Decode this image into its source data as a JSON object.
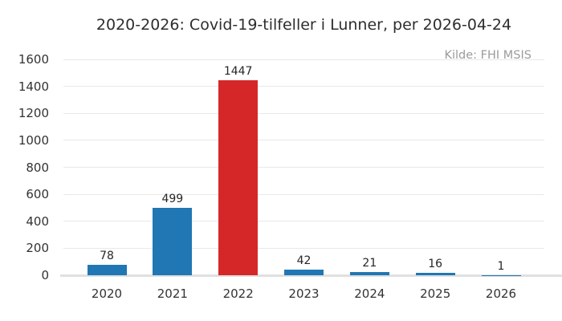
{
  "chart_data": {
    "type": "bar",
    "title": "2020-2026: Covid-19-tilfeller i Lunner, per 2026-04-24",
    "source": "Kilde: FHI MSIS",
    "categories": [
      "2020",
      "2021",
      "2022",
      "2023",
      "2024",
      "2025",
      "2026"
    ],
    "values": [
      78,
      499,
      1447,
      42,
      21,
      16,
      1
    ],
    "value_labels": [
      "78",
      "499",
      "1447",
      "42",
      "21",
      "16",
      "1"
    ],
    "bar_colors": [
      "#2077b4",
      "#2077b4",
      "#d62728",
      "#2077b4",
      "#2077b4",
      "#2077b4",
      "#2077b4"
    ],
    "xlabel": "",
    "ylabel": "",
    "ylim": [
      0,
      1600
    ],
    "yticks": [
      0,
      200,
      400,
      600,
      800,
      1000,
      1200,
      1400,
      1600
    ],
    "grid": true,
    "legend": false,
    "colors": {
      "bar_default": "#2077b4",
      "bar_highlight": "#d62728",
      "gridline": "#e9e9e9",
      "zero_line": "#e0e0e0",
      "title_text": "#2e2e2e",
      "tick_text": "#333333",
      "source_text": "#9b9b9b",
      "background": "#ffffff"
    }
  }
}
